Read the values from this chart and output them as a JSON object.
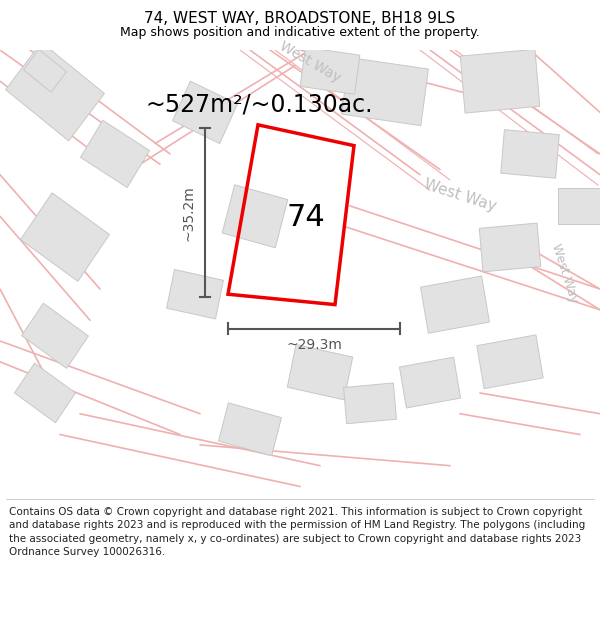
{
  "title": "74, WEST WAY, BROADSTONE, BH18 9LS",
  "subtitle": "Map shows position and indicative extent of the property.",
  "area_text": "~527m²/~0.130ac.",
  "number_label": "74",
  "dim_h": "~29.3m",
  "dim_v": "~35.2m",
  "copyright_text": "Contains OS data © Crown copyright and database right 2021. This information is subject to Crown copyright and database rights 2023 and is reproduced with the permission of HM Land Registry. The polygons (including the associated geometry, namely x, y co-ordinates) are subject to Crown copyright and database rights 2023 Ordnance Survey 100026316.",
  "map_bg": "#fafafa",
  "road_color": "#f0b0b0",
  "building_color": "#e2e2e2",
  "building_edge": "#c8c8c8",
  "property_color": "#ee0000",
  "dim_color": "#555555",
  "street_label_color": "#c0bebe",
  "title_fontsize": 11,
  "subtitle_fontsize": 9,
  "area_fontsize": 17,
  "number_fontsize": 22,
  "dim_fontsize": 10,
  "copyright_fontsize": 7.5,
  "road_lw": 1.2,
  "property_lw": 2.5
}
